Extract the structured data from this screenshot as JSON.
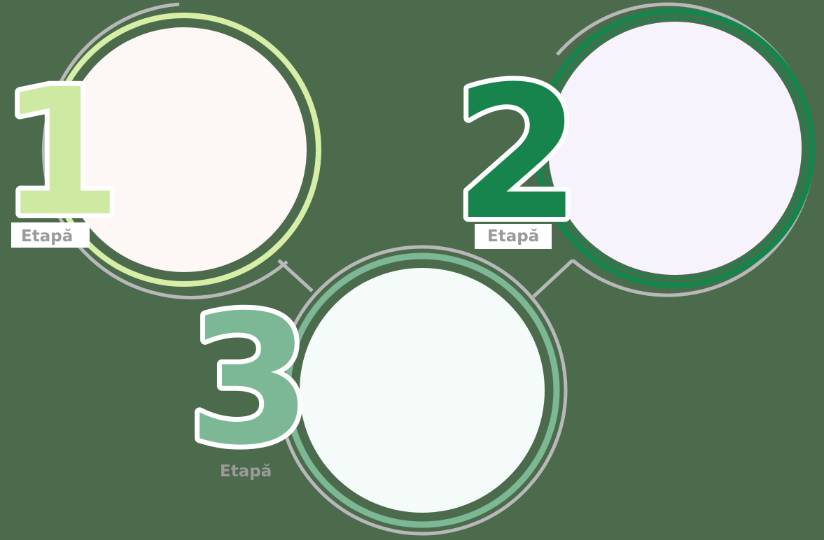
{
  "steps": [
    {
      "number": "1",
      "label": "Etapă",
      "digit_color": "#cde9a2",
      "ring_color": "#d6eea6",
      "fill_color": "#fdf7f5"
    },
    {
      "number": "2",
      "label": "Etapă",
      "digit_color": "#17844d",
      "ring_color": "#17844d",
      "fill_color": "#f7f3fd"
    },
    {
      "number": "3",
      "label": "Etapă",
      "digit_color": "#7cb896",
      "ring_color": "#7cb896",
      "fill_color": "#f4fbf8"
    }
  ],
  "colors": {
    "background": "#4b6b4c",
    "outer_ring": "#b8b8b8",
    "connector": "#b8b8b8"
  }
}
